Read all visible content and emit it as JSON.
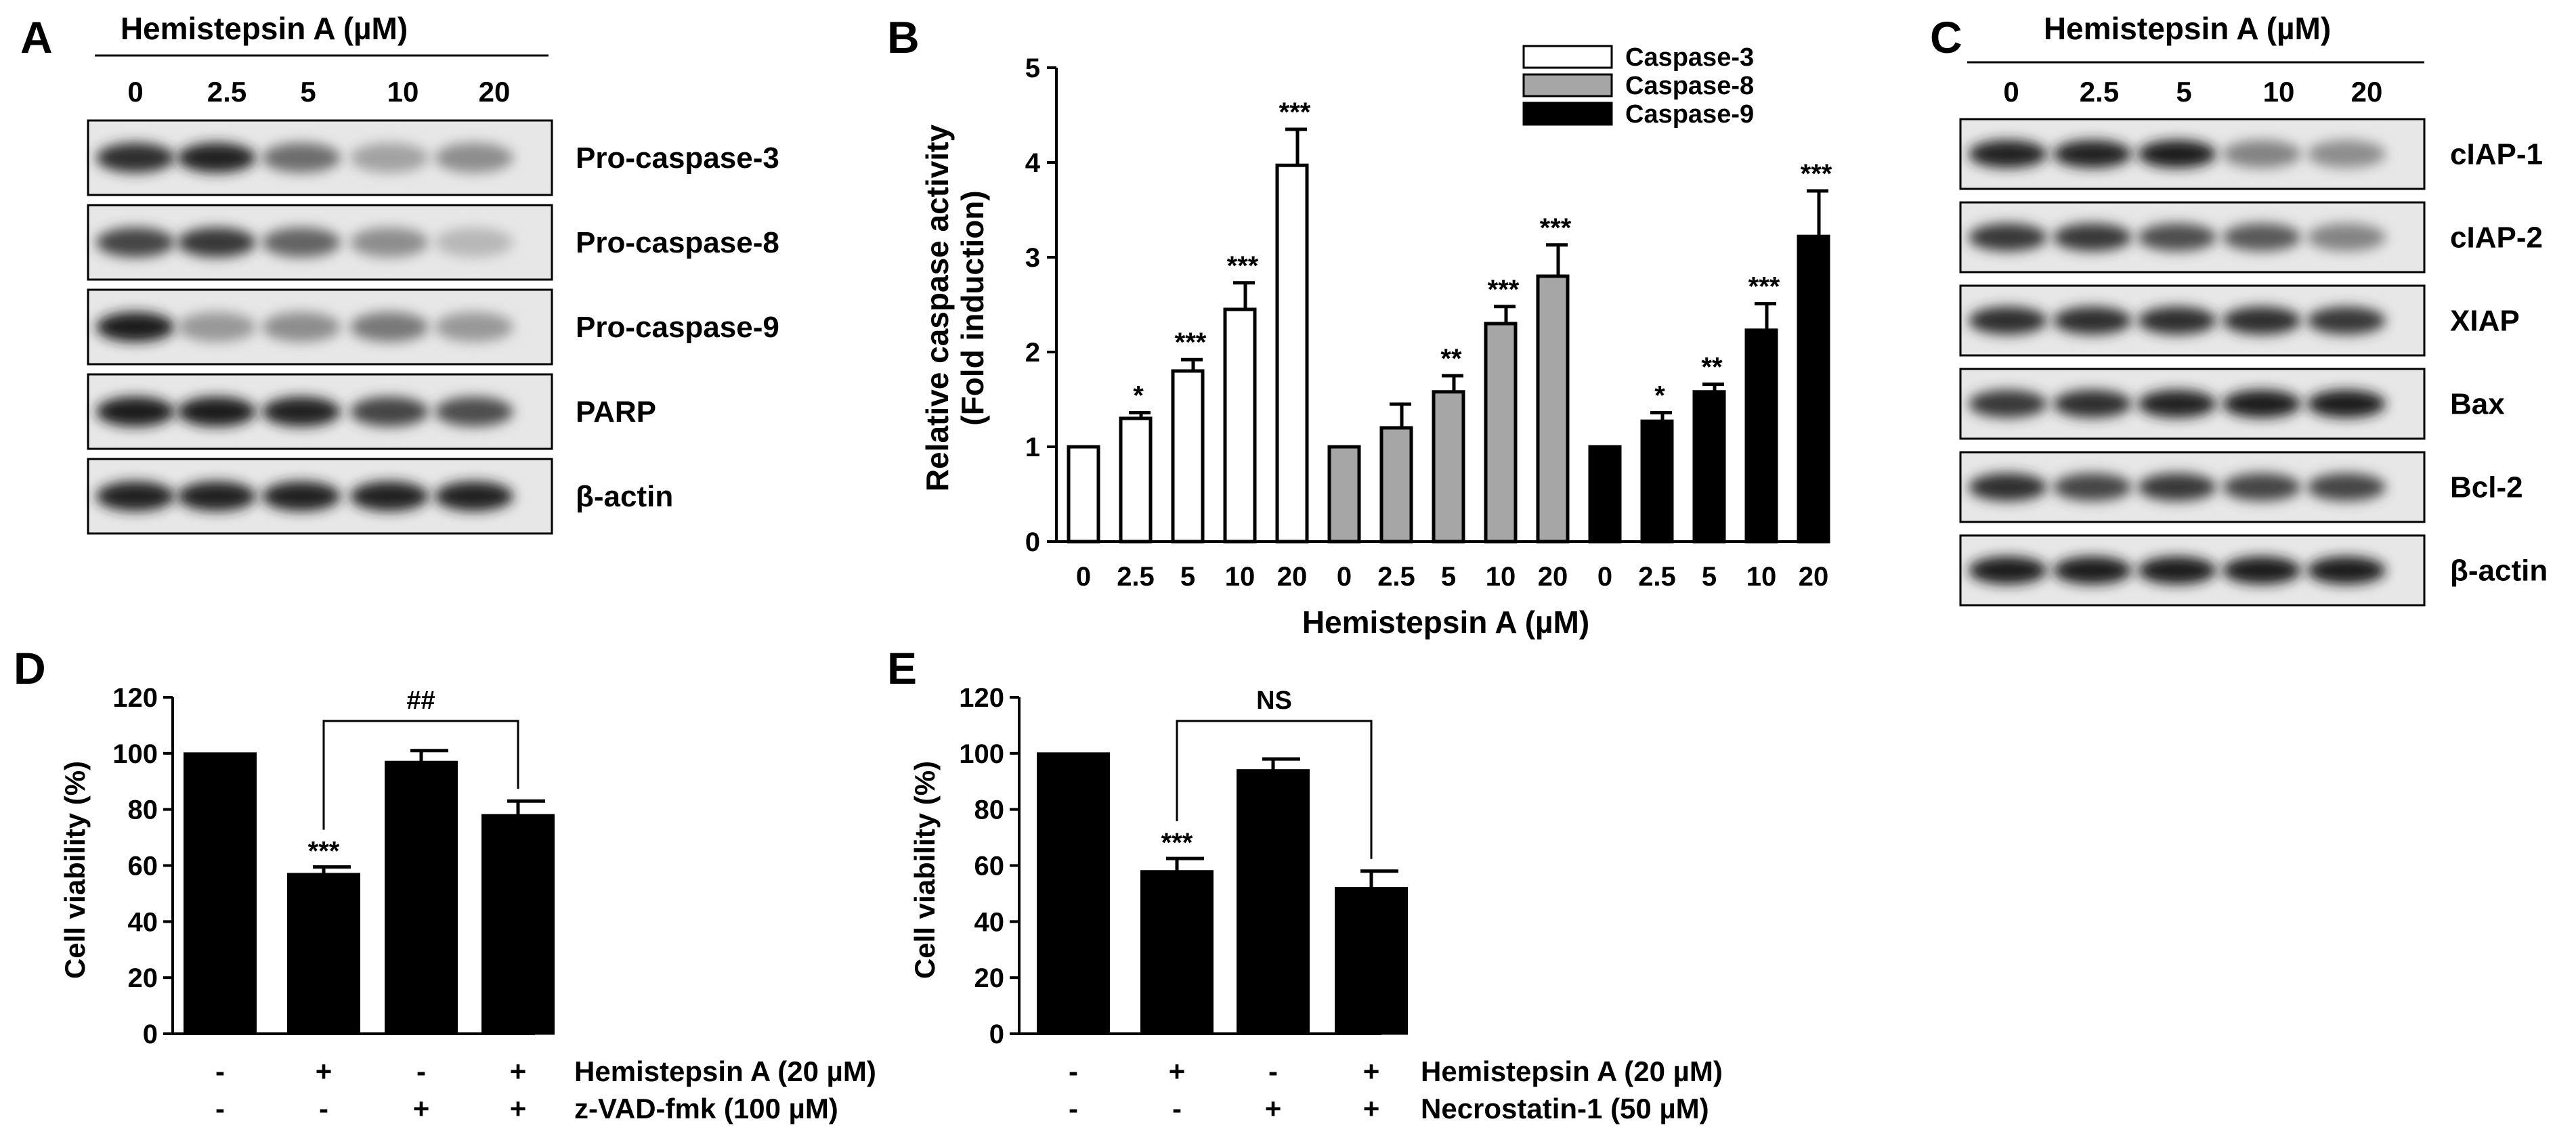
{
  "panels": {
    "A": {
      "letter": "A",
      "header": "Hemistepsin A (µM)",
      "lanes": [
        "0",
        "2.5",
        "5",
        "10",
        "20"
      ],
      "bands": [
        {
          "label": "Pro-caspase-3",
          "intensity": [
            0.85,
            0.9,
            0.55,
            0.3,
            0.4
          ]
        },
        {
          "label": "Pro-caspase-8",
          "intensity": [
            0.75,
            0.8,
            0.6,
            0.4,
            0.2
          ]
        },
        {
          "label": "Pro-caspase-9",
          "intensity": [
            0.95,
            0.35,
            0.4,
            0.5,
            0.35
          ]
        },
        {
          "label": "PARP",
          "intensity": [
            0.95,
            0.95,
            0.9,
            0.75,
            0.7
          ]
        },
        {
          "label": "β-actin",
          "intensity": [
            0.9,
            0.9,
            0.9,
            0.9,
            0.9
          ]
        }
      ]
    },
    "C": {
      "letter": "C",
      "header": "Hemistepsin A (µM)",
      "lanes": [
        "0",
        "2.5",
        "5",
        "10",
        "20"
      ],
      "bands": [
        {
          "label": "cIAP-1",
          "intensity": [
            0.9,
            0.9,
            0.95,
            0.45,
            0.4
          ]
        },
        {
          "label": "cIAP-2",
          "intensity": [
            0.8,
            0.8,
            0.7,
            0.65,
            0.45
          ]
        },
        {
          "label": "XIAP",
          "intensity": [
            0.85,
            0.85,
            0.85,
            0.85,
            0.8
          ]
        },
        {
          "label": "Bax",
          "intensity": [
            0.8,
            0.85,
            0.9,
            0.95,
            0.95
          ]
        },
        {
          "label": "Bcl-2",
          "intensity": [
            0.85,
            0.75,
            0.8,
            0.75,
            0.75
          ]
        },
        {
          "label": "β-actin",
          "intensity": [
            0.95,
            0.95,
            0.95,
            0.95,
            0.95
          ]
        }
      ]
    }
  },
  "chart_data": [
    {
      "panel": "B",
      "type": "bar",
      "ylabel": [
        "Relative caspase activity",
        "(Fold induction)"
      ],
      "xlabel": "Hemistepsin A (µM)",
      "ylim": [
        0,
        5
      ],
      "yticks": [
        "0",
        "1",
        "2",
        "3",
        "4",
        "5"
      ],
      "categories": [
        "0",
        "2.5",
        "5",
        "10",
        "20"
      ],
      "series": [
        {
          "name": "Caspase-3",
          "color": "#ffffff",
          "values": [
            1.0,
            1.3,
            1.8,
            2.45,
            3.97
          ],
          "errors": [
            0,
            0.06,
            0.12,
            0.28,
            0.38
          ],
          "sig": [
            "",
            "*",
            "***",
            "***",
            "***"
          ]
        },
        {
          "name": "Caspase-8",
          "color": "#a6a6a6",
          "values": [
            1.0,
            1.2,
            1.58,
            2.3,
            2.8
          ],
          "errors": [
            0,
            0.25,
            0.17,
            0.18,
            0.33
          ],
          "sig": [
            "",
            "",
            "**",
            "***",
            "***"
          ]
        },
        {
          "name": "Caspase-9",
          "color": "#000000",
          "values": [
            1.0,
            1.27,
            1.58,
            2.23,
            3.22
          ],
          "errors": [
            0,
            0.09,
            0.08,
            0.28,
            0.48
          ],
          "sig": [
            "",
            "*",
            "**",
            "***",
            "***"
          ]
        }
      ]
    },
    {
      "panel": "D",
      "type": "bar",
      "ylabel": "Cell viability (%)",
      "ylim": [
        0,
        120
      ],
      "yticks": [
        "0",
        "20",
        "40",
        "60",
        "80",
        "100",
        "120"
      ],
      "values": [
        100,
        57,
        97,
        78
      ],
      "errors": [
        0,
        2.5,
        4,
        5
      ],
      "sig": [
        "",
        "***",
        "",
        ""
      ],
      "bracket": {
        "from": 1,
        "to": 3,
        "label": "##"
      },
      "conditions": [
        {
          "label": "Hemistepsin A (20 µM)",
          "marks": [
            "-",
            "+",
            "-",
            "+"
          ]
        },
        {
          "label": "z-VAD-fmk (100 µM)",
          "marks": [
            "-",
            "-",
            "+",
            "+"
          ]
        }
      ]
    },
    {
      "panel": "E",
      "type": "bar",
      "ylabel": "Cell viability (%)",
      "ylim": [
        0,
        120
      ],
      "yticks": [
        "0",
        "20",
        "40",
        "60",
        "80",
        "100",
        "120"
      ],
      "values": [
        100,
        58,
        94,
        52
      ],
      "errors": [
        0,
        4.5,
        4,
        6
      ],
      "sig": [
        "",
        "***",
        "",
        ""
      ],
      "bracket": {
        "from": 1,
        "to": 3,
        "label": "NS"
      },
      "conditions": [
        {
          "label": "Hemistepsin A (20 µM)",
          "marks": [
            "-",
            "+",
            "-",
            "+"
          ]
        },
        {
          "label": "Necrostatin-1 (50 µM)",
          "marks": [
            "-",
            "-",
            "+",
            "+"
          ]
        }
      ]
    }
  ],
  "panel_letters": {
    "B": "B",
    "D": "D",
    "E": "E"
  }
}
